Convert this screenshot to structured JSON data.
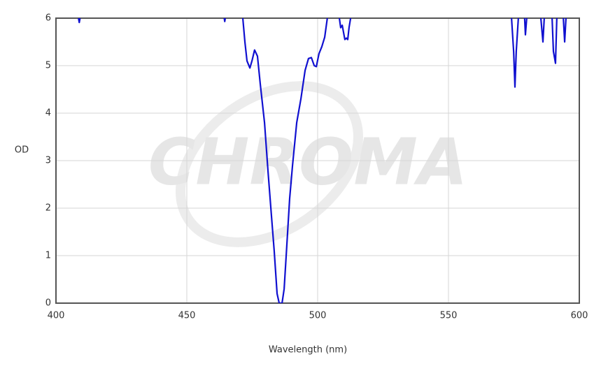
{
  "chart_data": {
    "type": "line",
    "watermark": "CHROMA",
    "x_label": "Wavelength (nm)",
    "y_label": "OD",
    "x": [
      408.6,
      408.9,
      409.2,
      null,
      464.3,
      464.5,
      464.7,
      null,
      471.4,
      472.2,
      473,
      474.1,
      474.9,
      475.9,
      477,
      478.1,
      479.7,
      481,
      482.4,
      483.4,
      484.5,
      485.3,
      486.4,
      487.2,
      488.2,
      489.3,
      490.4,
      492,
      493.6,
      495.2,
      496.5,
      497.6,
      498.7,
      499.5,
      500.5,
      501.6,
      502.7,
      503.7,
      null,
      508.3,
      508.8,
      509.4,
      509.9,
      510.4,
      511,
      511.5,
      512,
      512.6,
      null,
      574.1,
      574.9,
      575.4,
      575.9,
      576.7,
      null,
      579.1,
      579.4,
      579.9,
      null,
      585.3,
      586.1,
      586.6,
      null,
      589.6,
      590.1,
      590.9,
      591.4,
      null,
      593.9,
      594.4,
      594.9
    ],
    "series": [
      {
        "name": "OD",
        "color": "#1010d0",
        "values": [
          6,
          5.91,
          6,
          null,
          6,
          5.93,
          6,
          null,
          6,
          5.5,
          5.1,
          4.95,
          5.1,
          5.33,
          5.2,
          4.6,
          3.8,
          2.8,
          1.8,
          1.1,
          0.2,
          0,
          0,
          0.3,
          1.2,
          2.2,
          2.9,
          3.8,
          4.3,
          4.9,
          5.15,
          5.17,
          5.0,
          4.98,
          5.25,
          5.4,
          5.6,
          6,
          null,
          6,
          5.8,
          5.85,
          5.7,
          5.55,
          5.58,
          5.55,
          5.8,
          6,
          null,
          6,
          5.3,
          4.55,
          5.3,
          6,
          null,
          6,
          5.65,
          6,
          null,
          6,
          5.5,
          6,
          null,
          6,
          5.3,
          5.05,
          6,
          null,
          6,
          5.5,
          6
        ]
      }
    ],
    "xlim": [
      400,
      600
    ],
    "xticks": [
      400,
      450,
      500,
      550,
      600
    ],
    "ylim": [
      0,
      6
    ],
    "yticks": [
      0,
      1,
      2,
      3,
      4,
      5,
      6
    ],
    "grid": true
  }
}
